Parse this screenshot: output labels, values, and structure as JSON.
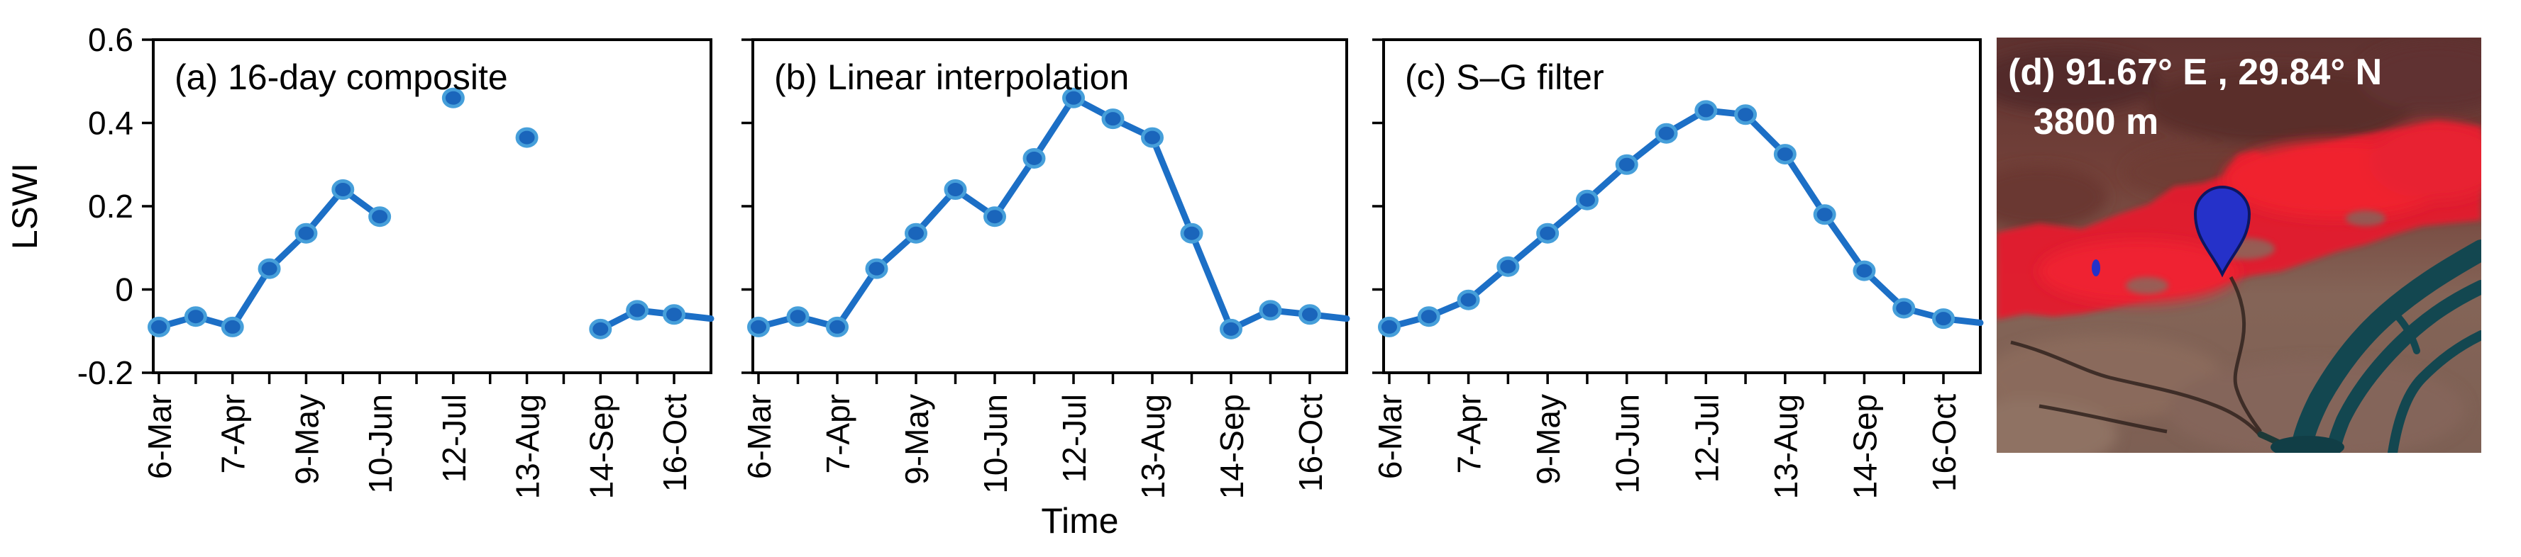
{
  "figure": {
    "y_axis_label": "LSWI",
    "x_axis_label": "Time",
    "colors": {
      "line": "#1c6fc6",
      "marker_fill": "#1a65bb",
      "marker_edge": "#469fda",
      "axis": "#000000",
      "map_pin_blue": "#2531c9",
      "map_vegetation_red": "#e31f2e",
      "map_river_teal": "#134750",
      "map_terrain_maroon": "#6b3a34"
    }
  },
  "chart_data": [
    {
      "id": "a",
      "type": "line",
      "title": "(a) 16-day composite",
      "categories": [
        "6-Mar",
        "",
        "7-Apr",
        "",
        "9-May",
        "",
        "10-Jun",
        "",
        "12-Jul",
        "",
        "13-Aug",
        "",
        "14-Sep",
        "",
        "16-Oct"
      ],
      "values": [
        -0.09,
        -0.065,
        -0.09,
        0.05,
        0.135,
        0.24,
        0.175,
        null,
        0.46,
        null,
        0.365,
        null,
        -0.095,
        -0.05,
        -0.06
      ],
      "edge_value": -0.07,
      "ylim": [
        -0.2,
        0.6
      ],
      "ytick_values": [
        0.6,
        0.4,
        0.2,
        0,
        -0.2
      ],
      "ytick_labels": [
        "0.6",
        "0.4",
        "0.2",
        "0",
        "-0.2"
      ],
      "show_y_tick_labels": true,
      "grid": false,
      "legend": "none"
    },
    {
      "id": "b",
      "type": "line",
      "title": "(b) Linear interpolation",
      "categories": [
        "6-Mar",
        "",
        "7-Apr",
        "",
        "9-May",
        "",
        "10-Jun",
        "",
        "12-Jul",
        "",
        "13-Aug",
        "",
        "14-Sep",
        "",
        "16-Oct"
      ],
      "values": [
        -0.09,
        -0.065,
        -0.09,
        0.05,
        0.135,
        0.24,
        0.175,
        0.315,
        0.46,
        0.41,
        0.365,
        0.135,
        -0.095,
        -0.05,
        -0.06
      ],
      "edge_value": -0.07,
      "ylim": [
        -0.2,
        0.6
      ],
      "ytick_values": [
        0.6,
        0.4,
        0.2,
        0,
        -0.2
      ],
      "ytick_labels": [
        "0.6",
        "0.4",
        "0.2",
        "0",
        "-0.2"
      ],
      "show_y_tick_labels": false,
      "grid": false,
      "legend": "none"
    },
    {
      "id": "c",
      "type": "line",
      "title": "(c) S–G filter",
      "categories": [
        "6-Mar",
        "",
        "7-Apr",
        "",
        "9-May",
        "",
        "10-Jun",
        "",
        "12-Jul",
        "",
        "13-Aug",
        "",
        "14-Sep",
        "",
        "16-Oct"
      ],
      "values": [
        -0.09,
        -0.065,
        -0.025,
        0.055,
        0.135,
        0.215,
        0.3,
        0.375,
        0.43,
        0.42,
        0.325,
        0.18,
        0.045,
        -0.045,
        -0.07
      ],
      "edge_value": -0.08,
      "ylim": [
        -0.2,
        0.6
      ],
      "ytick_values": [
        0.6,
        0.4,
        0.2,
        0,
        -0.2
      ],
      "ytick_labels": [
        "0.6",
        "0.4",
        "0.2",
        "0",
        "-0.2"
      ],
      "show_y_tick_labels": false,
      "grid": false,
      "legend": "none"
    }
  ],
  "map_panel": {
    "label_line1": "(d) 91.67° E , 29.84° N",
    "label_line2": "3800 m",
    "content": "false-color satellite image with red vegetation band, braided river and blue location pin"
  }
}
